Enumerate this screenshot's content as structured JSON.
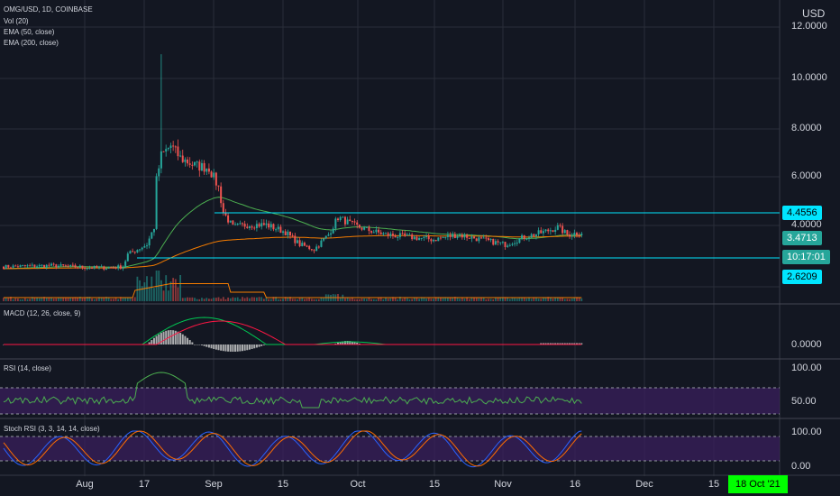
{
  "header": {
    "symbol": "OMG/USD, 1D, COINBASE",
    "indicators": [
      "Vol (20)",
      "EMA (50, close)",
      "EMA (200, close)"
    ],
    "currency": "USD"
  },
  "price_axis": {
    "labels": [
      "12.0000",
      "10.0000",
      "8.0000",
      "6.0000",
      "4.0000"
    ]
  },
  "price_tags": {
    "resistance": "4.4556",
    "current_price": "3.4713",
    "countdown": "10:17:01",
    "support": "2.6209",
    "colors": {
      "resistance": "#00e5ff",
      "support": "#00e5ff",
      "current": "#26a69a"
    }
  },
  "macd": {
    "title": "MACD (12, 26, close, 9)",
    "axis_label": "0.0000"
  },
  "rsi": {
    "title": "RSI (14, close)",
    "axis_labels": [
      "100.00",
      "50.00"
    ]
  },
  "stoch": {
    "title": "Stoch RSI (3, 3, 14, 14, close)",
    "axis_labels": [
      "100.00",
      "0.00"
    ]
  },
  "time_axis": {
    "labels": [
      "Aug",
      "17",
      "Sep",
      "15",
      "Oct",
      "15",
      "Nov",
      "16",
      "Dec",
      "15"
    ],
    "current_date": "18 Oct '21"
  },
  "chart_data": {
    "type": "candlestick",
    "price_ylim": [
      2.2,
      12.8
    ],
    "horizontal_lines": [
      4.4556,
      2.6209
    ],
    "series": [
      {
        "name": "Vol (20)"
      },
      {
        "name": "EMA (50, close)"
      },
      {
        "name": "EMA (200, close)"
      }
    ]
  }
}
